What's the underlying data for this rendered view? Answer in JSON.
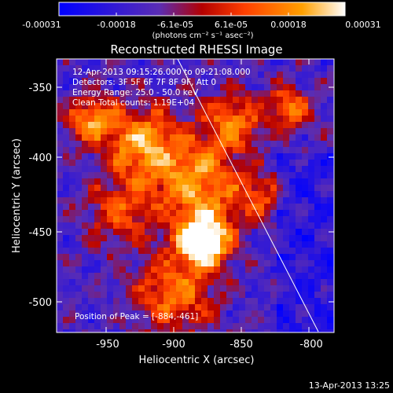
{
  "colorbar": {
    "tick_labels": [
      "-0.00031",
      "-0.00018",
      "-6.1e-05",
      "6.1e-05",
      "0.00018",
      "0.00031"
    ],
    "units": "(photons cm⁻² s⁻¹ asec⁻²)"
  },
  "image": {
    "title": "Reconstructed RHESSI Image",
    "info_lines": [
      "12-Apr-2013 09:15:26.000 to 09:21:08.000",
      "Detectors: 3F 5F 6F 7F 8F 9F, Att 0",
      "Energy Range: 25.0 - 50.0 keV",
      "Clean     Total counts: 1.19E+04"
    ],
    "peak_label": "Position of Peak = [-884,-461]",
    "xlabel": "Heliocentric X (arcsec)",
    "ylabel": "Heliocentric Y (arcsec)",
    "x_ticks": [
      "-950",
      "-900",
      "-850",
      "-800"
    ],
    "y_ticks": [
      "-350",
      "-400",
      "-450",
      "-500"
    ],
    "xlim": [
      -980,
      -790
    ],
    "ylim": [
      -525,
      -330
    ]
  },
  "footer": {
    "timestamp": "13-Apr-2013 13:25"
  },
  "colors": {
    "background": "#000000",
    "colormap": [
      "#0000ff",
      "#5a2db4",
      "#b40000",
      "#ff4000",
      "#ffa000",
      "#ffffff"
    ]
  }
}
